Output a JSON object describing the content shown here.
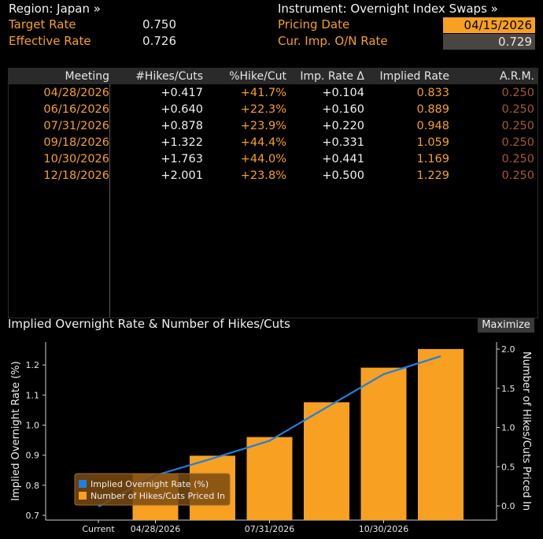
{
  "header": {
    "region_label": "Region: Japan »",
    "instrument_label": "Instrument: Overnight Index Swaps »",
    "target_rate_label": "Target Rate",
    "target_rate_value": "0.750",
    "effective_rate_label": "Effective Rate",
    "effective_rate_value": "0.726",
    "pricing_date_label": "Pricing Date",
    "pricing_date_value": "04/15/2026",
    "cur_imp_label": "Cur. Imp. O/N Rate",
    "cur_imp_value": "0.729"
  },
  "table": {
    "columns": [
      "Meeting",
      "#Hikes/Cuts",
      "%Hike/Cut",
      "Imp. Rate Δ",
      "Implied Rate",
      "A.R.M."
    ],
    "rows": [
      {
        "meeting": "04/28/2026",
        "hikes": "+0.417",
        "pct": "+41.7%",
        "delta": "+0.104",
        "implied": "0.833",
        "arm": "0.250"
      },
      {
        "meeting": "06/16/2026",
        "hikes": "+0.640",
        "pct": "+22.3%",
        "delta": "+0.160",
        "implied": "0.889",
        "arm": "0.250"
      },
      {
        "meeting": "07/31/2026",
        "hikes": "+0.878",
        "pct": "+23.9%",
        "delta": "+0.220",
        "implied": "0.948",
        "arm": "0.250"
      },
      {
        "meeting": "09/18/2026",
        "hikes": "+1.322",
        "pct": "+44.4%",
        "delta": "+0.331",
        "implied": "1.059",
        "arm": "0.250"
      },
      {
        "meeting": "10/30/2026",
        "hikes": "+1.763",
        "pct": "+44.0%",
        "delta": "+0.441",
        "implied": "1.169",
        "arm": "0.250"
      },
      {
        "meeting": "12/18/2026",
        "hikes": "+2.001",
        "pct": "+23.8%",
        "delta": "+0.500",
        "implied": "1.229",
        "arm": "0.250"
      }
    ]
  },
  "chart_panel": {
    "title": "Implied Overnight Rate & Number of Hikes/Cuts",
    "maximize_label": "Maximize"
  },
  "colors": {
    "accent_orange": "#f7a021",
    "line_blue": "#1f7fe0",
    "arm_brown": "#a8592a"
  },
  "chart_data": {
    "type": "bar",
    "title": "",
    "categories": [
      "Current",
      "04/28/2026",
      "06/16/2026",
      "07/31/2026",
      "09/18/2026",
      "10/30/2026",
      "12/18/2026"
    ],
    "x_tick_labels": [
      "Current",
      "04/28/2026",
      "07/31/2026",
      "10/30/2026"
    ],
    "series": [
      {
        "name": "Implied Overnight Rate (%)",
        "type": "line",
        "axis": "left",
        "values": [
          0.729,
          0.833,
          0.889,
          0.948,
          1.059,
          1.169,
          1.229
        ]
      },
      {
        "name": "Number of Hikes/Cuts Priced In",
        "type": "bar",
        "axis": "right",
        "values": [
          null,
          0.417,
          0.64,
          0.878,
          1.322,
          1.763,
          2.001
        ]
      }
    ],
    "ylabel_left": "Implied Overnight Rate (%)",
    "ylabel_right": "Number of Hikes/Cuts Priced In",
    "ylim_left": [
      0.7,
      1.25
    ],
    "yticks_left": [
      "0.7",
      "0.8",
      "0.9",
      "1.0",
      "1.1",
      "1.2"
    ],
    "ylim_right": [
      -0.05,
      2.05
    ],
    "yticks_right": [
      "0.0",
      "0.5",
      "1.0",
      "1.5",
      "2.0"
    ],
    "legend_position": "bottom-left",
    "grid": false
  }
}
